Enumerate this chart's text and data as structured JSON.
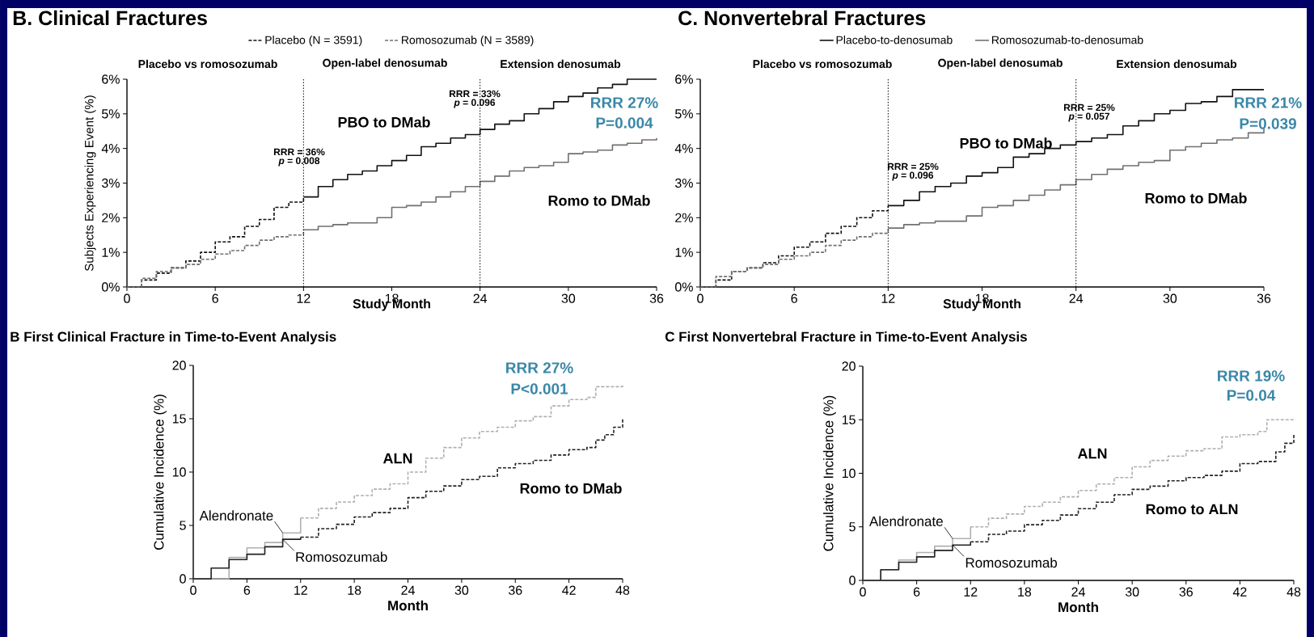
{
  "chart_data": [
    {
      "type": "step",
      "title": "B. Clinical Fractures",
      "xlabel": "Study Month",
      "ylabel": "Subjects Experiencing Event (%)",
      "legend": "top",
      "xlim": [
        0,
        36
      ],
      "xticks": [
        0,
        6,
        12,
        18,
        24,
        30,
        36
      ],
      "ylim": [
        0,
        6
      ],
      "yticks": [
        {
          "value": 0,
          "label": "0%"
        },
        {
          "value": 1,
          "label": "1%"
        },
        {
          "value": 2,
          "label": "2%"
        },
        {
          "value": 3,
          "label": "3%"
        },
        {
          "value": 4,
          "label": "4%"
        },
        {
          "value": 5,
          "label": "5%"
        },
        {
          "value": 6,
          "label": "6%"
        }
      ],
      "series": [
        {
          "name": "Placebo (N = 3591)",
          "color": "#111111",
          "line_style": "dashed",
          "x": [
            0,
            1,
            2,
            3,
            4,
            5,
            6,
            7,
            8,
            9,
            10,
            11,
            12
          ],
          "values": [
            0,
            0.2,
            0.4,
            0.55,
            0.75,
            1.0,
            1.3,
            1.45,
            1.75,
            1.95,
            2.3,
            2.45,
            2.6
          ]
        },
        {
          "name": "Romosozumab (N = 3589)",
          "color": "#707070",
          "line_style": "dashed",
          "x": [
            0,
            1,
            2,
            3,
            4,
            5,
            6,
            7,
            8,
            9,
            10,
            11,
            12
          ],
          "values": [
            0,
            0.25,
            0.45,
            0.55,
            0.65,
            0.8,
            0.95,
            1.05,
            1.2,
            1.35,
            1.45,
            1.5,
            1.65
          ]
        },
        {
          "color": "#111111",
          "line_style": "solid",
          "x": [
            12,
            13,
            14,
            15,
            16,
            17,
            18,
            19,
            20,
            21,
            22,
            23,
            24,
            25,
            26,
            27,
            28,
            29,
            30,
            31,
            32,
            33,
            34,
            35,
            36
          ],
          "values": [
            2.6,
            2.9,
            3.1,
            3.25,
            3.35,
            3.5,
            3.65,
            3.8,
            4.05,
            4.15,
            4.3,
            4.4,
            4.55,
            4.7,
            4.8,
            5.0,
            5.15,
            5.35,
            5.5,
            5.6,
            5.75,
            5.85,
            6.0,
            6.0,
            6.0
          ]
        },
        {
          "color": "#707070",
          "line_style": "solid",
          "x": [
            12,
            13,
            14,
            15,
            16,
            17,
            18,
            19,
            20,
            21,
            22,
            23,
            24,
            25,
            26,
            27,
            28,
            29,
            30,
            31,
            32,
            33,
            34,
            35,
            36
          ],
          "values": [
            1.65,
            1.75,
            1.8,
            1.85,
            1.85,
            2.0,
            2.3,
            2.35,
            2.45,
            2.6,
            2.75,
            2.9,
            3.05,
            3.2,
            3.35,
            3.45,
            3.5,
            3.6,
            3.85,
            3.9,
            3.95,
            4.1,
            4.15,
            4.25,
            4.3
          ]
        }
      ],
      "ref_lines": [
        {
          "axis": "x",
          "value": 12,
          "line_style": "dotted"
        },
        {
          "axis": "x",
          "value": 24,
          "line_style": "dotted"
        }
      ],
      "annotations": [
        "Placebo vs romosozumab",
        "Open-label denosumab",
        "Extension denosumab",
        "RRR = 36%",
        "*p* = 0.008",
        "RRR = 33%",
        "*p* = 0.096",
        "PBO to DMab",
        "Romo to DMab",
        "RRR 27%",
        "P=0.004"
      ]
    },
    {
      "type": "step",
      "title": "C. Nonvertebral Fractures",
      "xlabel": "Study Month",
      "legend": "top",
      "xlim": [
        0,
        36
      ],
      "xticks": [
        0,
        6,
        12,
        18,
        24,
        30,
        36
      ],
      "ylim": [
        0,
        6
      ],
      "yticks": [
        {
          "value": 0,
          "label": "0%"
        },
        {
          "value": 1,
          "label": "1%"
        },
        {
          "value": 2,
          "label": "2%"
        },
        {
          "value": 3,
          "label": "3%"
        },
        {
          "value": 4,
          "label": "4%"
        },
        {
          "value": 5,
          "label": "5%"
        },
        {
          "value": 6,
          "label": "6%"
        }
      ],
      "series": [
        {
          "color": "#111111",
          "line_style": "dashed",
          "x": [
            0,
            1,
            2,
            3,
            4,
            5,
            6,
            7,
            8,
            9,
            10,
            11,
            12
          ],
          "values": [
            0,
            0.2,
            0.45,
            0.55,
            0.7,
            0.9,
            1.15,
            1.3,
            1.55,
            1.75,
            2.0,
            2.2,
            2.35
          ]
        },
        {
          "color": "#707070",
          "line_style": "dashed",
          "x": [
            0,
            1,
            2,
            3,
            4,
            5,
            6,
            7,
            8,
            9,
            10,
            11,
            12
          ],
          "values": [
            0,
            0.3,
            0.45,
            0.55,
            0.65,
            0.8,
            0.9,
            1.0,
            1.2,
            1.35,
            1.45,
            1.55,
            1.7
          ]
        },
        {
          "name": "Placebo-to-denosumab",
          "color": "#111111",
          "line_style": "solid",
          "x": [
            12,
            13,
            14,
            15,
            16,
            17,
            18,
            19,
            20,
            21,
            22,
            23,
            24,
            25,
            26,
            27,
            28,
            29,
            30,
            31,
            32,
            33,
            34,
            35,
            36
          ],
          "values": [
            2.35,
            2.5,
            2.75,
            2.9,
            3.0,
            3.2,
            3.3,
            3.45,
            3.75,
            3.85,
            4.0,
            4.1,
            4.2,
            4.3,
            4.4,
            4.65,
            4.8,
            5.0,
            5.1,
            5.3,
            5.35,
            5.5,
            5.7,
            5.7,
            5.7
          ]
        },
        {
          "name": "Romosozumab-to-denosumab",
          "color": "#707070",
          "line_style": "solid",
          "x": [
            12,
            13,
            14,
            15,
            16,
            17,
            18,
            19,
            20,
            21,
            22,
            23,
            24,
            25,
            26,
            27,
            28,
            29,
            30,
            31,
            32,
            33,
            34,
            35,
            36
          ],
          "values": [
            1.7,
            1.8,
            1.85,
            1.9,
            1.9,
            2.05,
            2.3,
            2.35,
            2.5,
            2.65,
            2.8,
            2.95,
            3.1,
            3.25,
            3.4,
            3.5,
            3.6,
            3.65,
            3.95,
            4.05,
            4.15,
            4.25,
            4.3,
            4.45,
            4.6
          ]
        }
      ],
      "ref_lines": [
        {
          "axis": "x",
          "value": 12,
          "line_style": "dotted"
        },
        {
          "axis": "x",
          "value": 24,
          "line_style": "dotted"
        }
      ],
      "annotations": [
        "Placebo vs romosozumab",
        "Open-label denosumab",
        "Extension denosumab",
        "RRR = 25%",
        "*p* = 0.096",
        "RRR = 25%",
        "*p* = 0.057",
        "PBO to DMab",
        "Romo to DMab",
        "RRR 21%",
        "P=0.039"
      ]
    },
    {
      "type": "step",
      "title": "B  First Clinical Fracture in Time-to-Event Analysis",
      "xlabel": "Month",
      "ylabel": "Cumulative Incidence (%)",
      "xlim": [
        0,
        48
      ],
      "xticks": [
        0,
        6,
        12,
        18,
        24,
        30,
        36,
        42,
        48
      ],
      "ylim": [
        0,
        20
      ],
      "yticks": [
        0,
        5,
        10,
        15,
        20
      ],
      "series": [
        {
          "name": "Alendronate",
          "color": "#b0b0b0",
          "line_style": "solid",
          "x": [
            0,
            2,
            4,
            6,
            8,
            10,
            12
          ],
          "values": [
            0,
            null,
            2.0,
            2.9,
            3.4,
            4.3,
            5.7
          ]
        },
        {
          "name": "Romosozumab",
          "color": "#222222",
          "line_style": "solid",
          "x": [
            0,
            2,
            4,
            6,
            8,
            10,
            12
          ],
          "values": [
            0,
            1.0,
            1.8,
            2.3,
            3.0,
            3.7,
            3.9
          ]
        },
        {
          "color": "#b0b0b0",
          "line_style": "dashed",
          "x": [
            12,
            14,
            16,
            18,
            20,
            22,
            24,
            26,
            28,
            30,
            32,
            34,
            36,
            38,
            40,
            42,
            44,
            45,
            48
          ],
          "values": [
            5.7,
            6.6,
            7.2,
            7.8,
            8.4,
            8.9,
            10.0,
            11.3,
            12.3,
            13.2,
            13.8,
            14.2,
            14.8,
            15.2,
            16.2,
            16.8,
            17.0,
            18.0,
            18.2
          ]
        },
        {
          "color": "#222222",
          "line_style": "dashed",
          "x": [
            12,
            14,
            16,
            18,
            20,
            22,
            24,
            26,
            28,
            30,
            32,
            34,
            36,
            38,
            40,
            42,
            44,
            45,
            46,
            47,
            48
          ],
          "values": [
            3.9,
            4.7,
            5.1,
            5.8,
            6.2,
            6.6,
            7.6,
            8.2,
            8.7,
            9.3,
            9.6,
            10.4,
            10.8,
            11.1,
            11.6,
            12.1,
            12.3,
            13.0,
            13.5,
            14.2,
            15.0
          ]
        }
      ],
      "annotations": [
        "RRR 27%",
        "P<0.001",
        "ALN",
        "Romo to DMab"
      ]
    },
    {
      "type": "step",
      "title": "C  First Nonvertebral Fracture in Time-to-Event Analysis",
      "xlabel": "Month",
      "ylabel": "Cumulative Incidence (%)",
      "xlim": [
        0,
        48
      ],
      "xticks": [
        0,
        6,
        12,
        18,
        24,
        30,
        36,
        42,
        48
      ],
      "ylim": [
        0,
        20
      ],
      "yticks": [
        0,
        5,
        10,
        15,
        20
      ],
      "series": [
        {
          "name": "Alendronate",
          "color": "#b0b0b0",
          "line_style": "solid",
          "x": [
            0,
            2,
            4,
            6,
            8,
            10,
            12
          ],
          "values": [
            0,
            1.0,
            1.9,
            2.6,
            3.2,
            3.9,
            5.0
          ]
        },
        {
          "name": "Romosozumab",
          "color": "#222222",
          "line_style": "solid",
          "x": [
            0,
            2,
            4,
            6,
            8,
            10,
            12
          ],
          "values": [
            0,
            1.0,
            1.7,
            2.2,
            2.8,
            3.3,
            3.6
          ]
        },
        {
          "color": "#b0b0b0",
          "line_style": "dashed",
          "x": [
            12,
            14,
            16,
            18,
            20,
            22,
            24,
            26,
            28,
            30,
            32,
            34,
            36,
            38,
            40,
            42,
            44,
            45,
            48
          ],
          "values": [
            5.0,
            5.8,
            6.2,
            6.9,
            7.3,
            7.8,
            8.4,
            9.0,
            9.6,
            10.6,
            11.2,
            11.6,
            12.1,
            12.3,
            13.4,
            13.6,
            13.9,
            15.0,
            15.0
          ]
        },
        {
          "color": "#222222",
          "line_style": "dashed",
          "x": [
            12,
            14,
            16,
            18,
            20,
            22,
            24,
            26,
            28,
            30,
            32,
            34,
            36,
            38,
            40,
            42,
            44,
            46,
            47,
            48
          ],
          "values": [
            3.6,
            4.3,
            4.6,
            5.2,
            5.6,
            6.1,
            6.7,
            7.3,
            8.0,
            8.5,
            8.8,
            9.3,
            9.6,
            9.8,
            10.2,
            10.9,
            11.1,
            12.0,
            12.8,
            13.6
          ]
        }
      ],
      "annotations": [
        "RRR 19%",
        "P=0.04",
        "ALN",
        "Romo to ALN"
      ]
    }
  ]
}
